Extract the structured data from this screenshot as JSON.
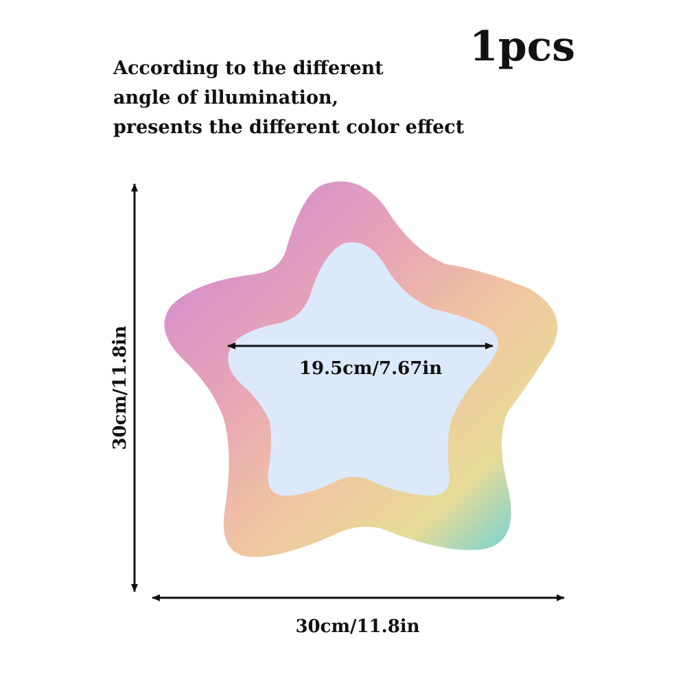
{
  "quantity_label": "1pcs",
  "description": {
    "line1": "According to the different",
    "line2": "angle of illumination,",
    "line3": "presents the different color effect"
  },
  "dimensions": {
    "height_label": "30cm/11.8in",
    "width_label": "30cm/11.8in",
    "inner_width_label": "19.5cm/7.67in"
  },
  "colors": {
    "gradient": [
      "#d68bd0",
      "#eba9a4",
      "#f2cf9e",
      "#e6dd9a",
      "#7fd4d2"
    ],
    "inner_fill": "#dce9fa",
    "arrow": "#111111"
  }
}
